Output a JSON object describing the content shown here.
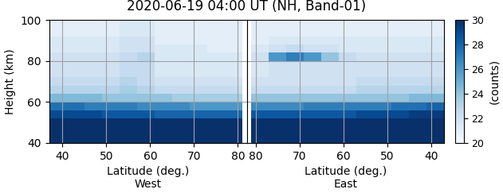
{
  "chart_data": {
    "type": "heatmap",
    "title": "2020-06-19 04:00 UT (NH, Band-01)",
    "ylabel": "Height (km)",
    "ylim": [
      40,
      100
    ],
    "yticks": [
      40,
      60,
      80,
      100
    ],
    "grid": true,
    "colorbar": {
      "range": [
        20,
        30
      ],
      "ticks": [
        20,
        22,
        24,
        26,
        28,
        30
      ],
      "label": "(counts)"
    },
    "y_edges": [
      40,
      44,
      48,
      52,
      56,
      60,
      64,
      68,
      72,
      76,
      80,
      84,
      88,
      92,
      96,
      100
    ],
    "panels": [
      {
        "xlabel": "Latitude (deg.)\nWest",
        "xlim": [
          37,
          82
        ],
        "xticks": [
          40,
          50,
          60,
          70,
          80
        ],
        "tick_labels": true,
        "x_edges": [
          37,
          41,
          45,
          49,
          53,
          57,
          61,
          65,
          69,
          73,
          77,
          81
        ],
        "cells": [
          [
            30,
            30,
            30,
            30,
            30,
            30,
            30,
            30,
            30,
            30,
            30
          ],
          [
            30,
            30,
            30,
            30,
            30,
            30,
            30,
            30,
            30,
            30,
            30
          ],
          [
            30,
            30,
            30,
            30,
            30,
            30,
            30,
            30,
            30,
            30,
            30
          ],
          [
            29,
            29,
            29,
            28.5,
            28.5,
            28.5,
            28,
            28,
            28,
            28,
            28
          ],
          [
            27.5,
            27.5,
            27,
            27,
            27,
            26.5,
            26.5,
            26.5,
            26,
            26,
            26
          ],
          [
            24.5,
            24.5,
            24.5,
            24,
            24,
            24,
            24,
            23.5,
            23.5,
            23.5,
            23.5
          ],
          [
            23,
            23,
            23,
            23,
            23.5,
            23,
            22.5,
            22.5,
            22.5,
            22.5,
            22.5
          ],
          [
            22.5,
            22.5,
            22.5,
            22.5,
            23,
            22.5,
            22,
            22,
            22,
            22,
            22
          ],
          [
            22,
            22,
            22,
            22,
            22.5,
            22.5,
            21.5,
            21.5,
            21.5,
            21.5,
            21.5
          ],
          [
            22,
            22,
            22,
            22,
            22.5,
            22.5,
            21.5,
            21.5,
            21.5,
            21.5,
            21.5
          ],
          [
            22,
            22,
            22,
            22,
            22.5,
            23,
            21.5,
            21.5,
            21.5,
            21.5,
            21.5
          ],
          [
            21.5,
            21.5,
            21.5,
            21.5,
            22,
            22,
            21.5,
            21.5,
            21.5,
            21,
            21
          ],
          [
            21.5,
            21.5,
            21.5,
            21.5,
            22,
            22,
            21,
            21,
            21,
            21,
            21
          ],
          [
            21,
            21,
            21,
            21,
            21.5,
            21.5,
            21,
            21,
            21,
            21,
            21
          ],
          [
            21,
            21,
            21,
            21,
            21.5,
            21.5,
            21,
            21,
            21,
            21,
            21
          ]
        ]
      },
      {
        "xlabel": "Latitude (deg.)\nEast",
        "xlim": [
          82,
          37
        ],
        "xticks": [
          80,
          70,
          60,
          50,
          40
        ],
        "tick_labels": "x",
        "x_edges": [
          81,
          77,
          73,
          69,
          65,
          61,
          57,
          53,
          49,
          45,
          41,
          37
        ],
        "cells": [
          [
            30,
            30,
            30,
            30,
            30,
            30,
            30,
            30,
            30,
            30,
            30
          ],
          [
            30,
            30,
            30,
            30,
            30,
            30,
            30,
            30,
            30,
            30,
            30
          ],
          [
            30,
            30,
            30,
            30,
            30,
            30,
            30,
            30,
            30,
            30,
            30
          ],
          [
            28.5,
            28.5,
            28.5,
            28.5,
            28.5,
            28.5,
            29,
            29,
            29,
            29.5,
            29.5
          ],
          [
            26.5,
            26.5,
            26.5,
            27,
            27,
            27,
            27,
            27,
            27.5,
            27.5,
            28
          ],
          [
            24,
            24,
            24,
            24,
            24,
            24,
            24,
            24,
            24,
            24.5,
            24.5
          ],
          [
            22.5,
            22.5,
            22.5,
            22.5,
            22.5,
            22.5,
            23,
            23,
            23,
            23,
            23
          ],
          [
            22,
            22,
            22,
            22,
            22,
            22,
            22.5,
            22.5,
            22.5,
            22.5,
            22.5
          ],
          [
            21.5,
            22,
            22,
            22,
            22,
            22,
            22,
            22,
            22,
            22,
            22
          ],
          [
            21.5,
            22,
            22,
            22,
            22,
            22,
            22,
            22,
            22,
            22,
            22
          ],
          [
            22,
            26,
            27,
            26,
            24,
            22.5,
            22,
            22,
            22,
            22,
            22
          ],
          [
            21.5,
            22,
            22.5,
            22,
            22,
            21.5,
            21.5,
            21.5,
            21.5,
            21.5,
            21.5
          ],
          [
            21,
            21.5,
            21.5,
            21.5,
            21.5,
            21.5,
            21.5,
            21.5,
            21.5,
            21.5,
            21.5
          ],
          [
            21,
            21,
            21,
            21,
            21,
            21,
            21,
            21,
            21,
            21,
            21
          ],
          [
            21,
            21,
            21,
            21,
            21,
            21,
            21,
            21,
            21,
            21,
            21
          ]
        ]
      }
    ]
  }
}
